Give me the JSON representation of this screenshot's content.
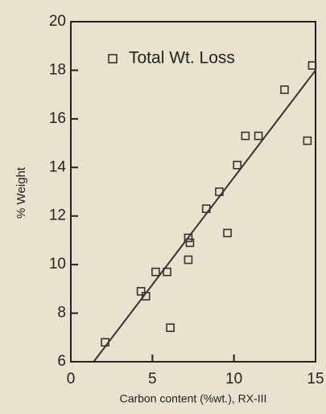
{
  "chart_data": {
    "type": "scatter",
    "xlabel": "Carbon content (%wt.), RX-III",
    "ylabel": "% Weight",
    "series": [
      {
        "name": "Total Wt. Loss",
        "color": "#333333",
        "x": [
          2.1,
          4.3,
          4.6,
          5.2,
          5.9,
          6.1,
          7.2,
          7.2,
          7.3,
          8.3,
          9.1,
          9.6,
          10.2,
          10.7,
          11.5,
          13.1,
          14.5,
          14.8
        ],
        "values": [
          6.8,
          8.9,
          8.7,
          9.7,
          9.7,
          7.4,
          10.2,
          11.1,
          10.9,
          12.3,
          13.0,
          11.3,
          14.1,
          15.3,
          15.3,
          17.2,
          15.1,
          18.2
        ]
      }
    ],
    "trendline": {
      "x": [
        1.4,
        15
      ],
      "values": [
        6,
        18
      ],
      "color": "#333333"
    },
    "xlim": [
      0,
      15
    ],
    "ylim": [
      6,
      20
    ],
    "xticks": [
      0,
      5,
      10,
      15
    ],
    "yticks": [
      6,
      8,
      10,
      12,
      14,
      16,
      18,
      20
    ],
    "legend": "upper left"
  }
}
